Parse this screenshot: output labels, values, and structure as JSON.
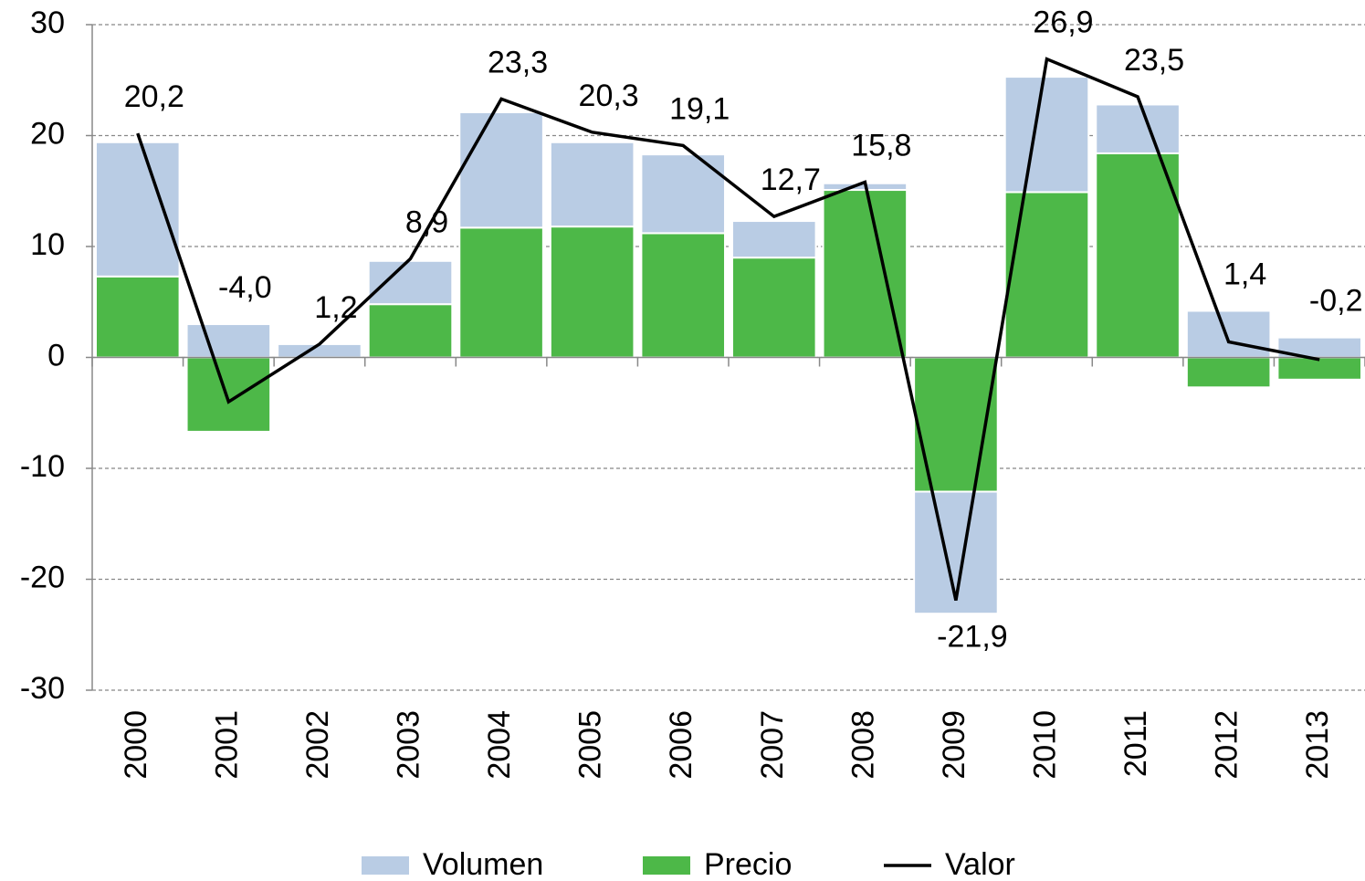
{
  "chart_data": {
    "type": "bar-line",
    "categories": [
      "2000",
      "2001",
      "2002",
      "2003",
      "2004",
      "2005",
      "2006",
      "2007",
      "2008",
      "2009",
      "2010",
      "2011",
      "2012",
      "2013"
    ],
    "series": [
      {
        "name": "Volumen",
        "color": "#b9cce4",
        "values": [
          12.1,
          3.0,
          1.2,
          3.9,
          10.4,
          7.6,
          7.1,
          3.3,
          0.6,
          -11.0,
          10.4,
          4.4,
          4.2,
          1.8
        ]
      },
      {
        "name": "Precio",
        "color": "#4db848",
        "values": [
          7.3,
          -6.7,
          0.0,
          4.8,
          11.7,
          11.8,
          11.2,
          9.0,
          15.1,
          -12.1,
          14.9,
          18.4,
          -2.7,
          -2.0
        ]
      },
      {
        "name": "Valor",
        "color": "#000000",
        "values": [
          20.2,
          -4.0,
          1.2,
          8.9,
          23.3,
          20.3,
          19.1,
          12.7,
          15.8,
          -21.9,
          26.9,
          23.5,
          1.4,
          -0.2
        ],
        "value_labels": [
          "20,2",
          "-4,0",
          "1,2",
          "8,9",
          "23,3",
          "20,3",
          "19,1",
          "12,7",
          "15,8",
          "-21,9",
          "26,9",
          "23,5",
          "1,4",
          "-0,2"
        ]
      }
    ],
    "ylim": [
      -30,
      30
    ],
    "yticks": [
      -30,
      -20,
      -10,
      0,
      10,
      20,
      30
    ],
    "grid": true,
    "legend": "bottom"
  }
}
